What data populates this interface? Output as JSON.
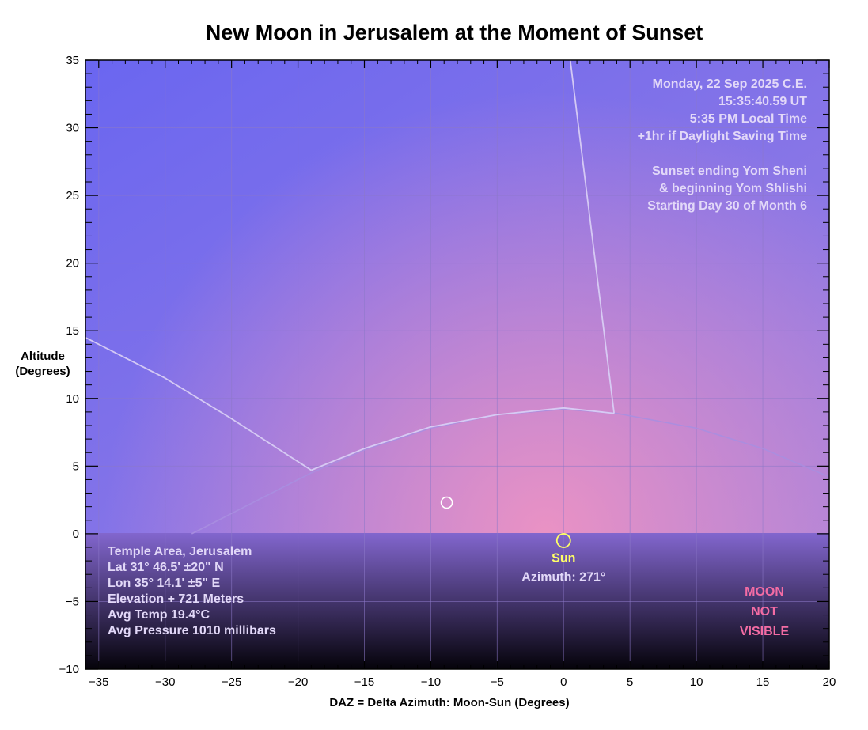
{
  "chart_data": {
    "type": "line",
    "title": "New Moon in Jerusalem at the Moment of Sunset",
    "xlabel": "DAZ = Delta Azimuth: Moon-Sun (Degrees)",
    "ylabel_lines": [
      "Altitude",
      "(Degrees)"
    ],
    "xlim": [
      -36,
      20
    ],
    "ylim": [
      -10,
      35
    ],
    "x_ticks": [
      -35,
      -30,
      -25,
      -20,
      -15,
      -10,
      -5,
      0,
      5,
      10,
      15,
      20
    ],
    "y_ticks": [
      -10,
      -5,
      0,
      5,
      10,
      15,
      20,
      25,
      30,
      35
    ],
    "grid": true,
    "info_top_right": [
      "Monday, 22 Sep 2025 C.E.",
      "15:35:40.59 UT",
      "5:35 PM Local Time",
      "+1hr if Daylight Saving Time",
      "",
      "Sunset ending Yom Sheni",
      "& beginning Yom Shlishi",
      "Starting Day 30 of Month 6"
    ],
    "info_bottom_left": [
      "Temple Area, Jerusalem",
      "Lat 31° 46.5' ±20\" N",
      "Lon 35° 14.1' ±5\" E",
      "Elevation + 721 Meters",
      "Avg Temp 19.4°C",
      "Avg Pressure 1010 millibars"
    ],
    "visibility_lines": [
      "MOON",
      "NOT",
      "VISIBLE"
    ],
    "sun": {
      "label": "Sun",
      "daz": 0,
      "alt": -0.5,
      "azimuth_label": "Azimuth: 271°"
    },
    "moon": {
      "daz": -8.8,
      "alt": 2.3
    },
    "series": [
      {
        "role": "ecliptic",
        "points": [
          [
            -28,
            0
          ],
          [
            -23,
            2.5
          ],
          [
            -19,
            4.5
          ],
          [
            -15,
            6.2
          ],
          [
            -10,
            7.8
          ],
          [
            -5,
            8.8
          ],
          [
            0,
            9.2
          ],
          [
            4,
            8.9
          ],
          [
            10,
            7.8
          ],
          [
            15,
            6.3
          ],
          [
            20,
            4.2
          ]
        ]
      },
      {
        "role": "boundary-left",
        "points": [
          [
            -36,
            14.5
          ],
          [
            -30,
            11.5
          ],
          [
            -25,
            8.5
          ],
          [
            -19,
            4.7
          ]
        ]
      },
      {
        "role": "boundary-right",
        "points": [
          [
            0.5,
            35
          ],
          [
            3.8,
            8.9
          ]
        ]
      },
      {
        "role": "bright-arc",
        "points": [
          [
            -19,
            4.7
          ],
          [
            -15,
            6.3
          ],
          [
            -10,
            7.9
          ],
          [
            -5,
            8.8
          ],
          [
            0,
            9.3
          ],
          [
            3.8,
            8.9
          ]
        ]
      }
    ],
    "colors": {
      "sky_top_left": "#6a66f0",
      "sky_mid": "#9c80e0",
      "sky_glow": "#ea92c4",
      "ground_top": "#8266ce",
      "ground_bottom": "#05030a",
      "info_text": "#e2d8f8",
      "sun": "#ffff66",
      "visibility": "#f46ca4",
      "curve": "#d8cdf4",
      "curve_dim": "#a88ee0"
    }
  }
}
